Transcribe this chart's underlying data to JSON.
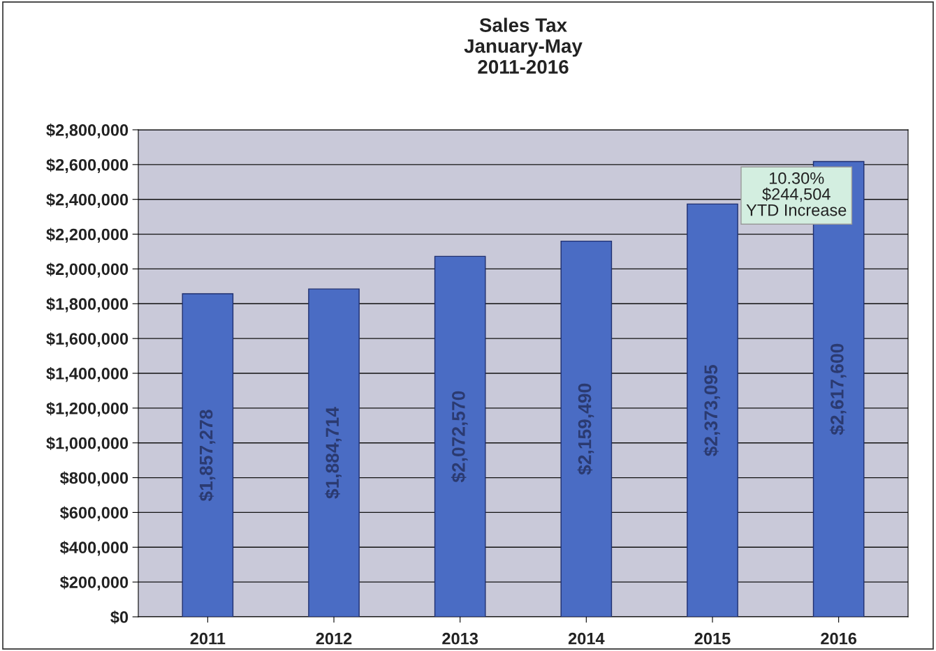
{
  "chart_data": {
    "type": "bar",
    "title": "Sales Tax\nJanuary-May\n2011-2016",
    "categories": [
      "2011",
      "2012",
      "2013",
      "2014",
      "2015",
      "2016"
    ],
    "values": [
      1857278,
      1884714,
      2072570,
      2159490,
      2373095,
      2617600
    ],
    "value_labels": [
      "$1,857,278",
      "$1,884,714",
      "$2,072,570",
      "$2,159,490",
      "$2,373,095",
      "$2,617,600"
    ],
    "color": "#4a6cc4",
    "ylim": [
      0,
      2800000
    ],
    "yticks": [
      {
        "value": 0,
        "label": "$0"
      },
      {
        "value": 200000,
        "label": "$200,000"
      },
      {
        "value": 400000,
        "label": "$400,000"
      },
      {
        "value": 600000,
        "label": "$600,000"
      },
      {
        "value": 800000,
        "label": "$800,000"
      },
      {
        "value": 1000000,
        "label": "$1,000,000"
      },
      {
        "value": 1200000,
        "label": "$1,200,000"
      },
      {
        "value": 1400000,
        "label": "$1,400,000"
      },
      {
        "value": 1600000,
        "label": "$1,600,000"
      },
      {
        "value": 1800000,
        "label": "$1,800,000"
      },
      {
        "value": 2000000,
        "label": "$2,000,000"
      },
      {
        "value": 2200000,
        "label": "$2,200,000"
      },
      {
        "value": 2400000,
        "label": "$2,400,000"
      },
      {
        "value": 2600000,
        "label": "$2,600,000"
      },
      {
        "value": 2800000,
        "label": "$2,800,000"
      }
    ],
    "grid": "y",
    "annotations": [
      "10.30%\n$244,504\nYTD Increase"
    ]
  }
}
